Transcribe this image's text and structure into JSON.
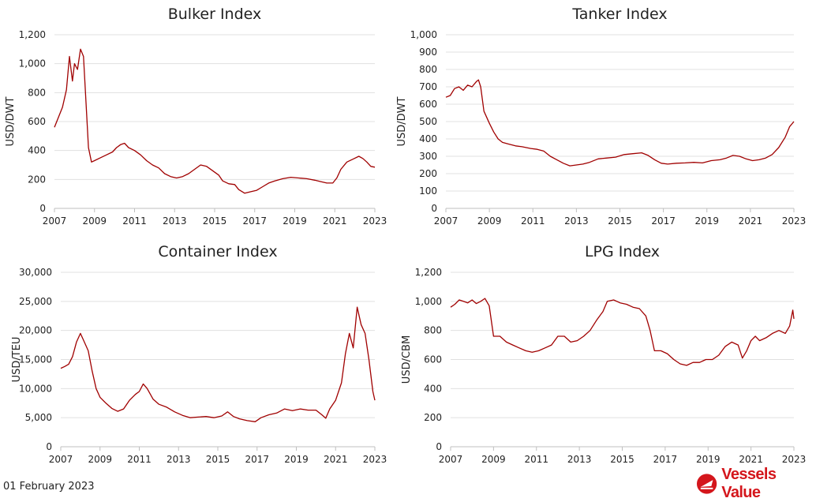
{
  "colors": {
    "line": "#a00000",
    "grid": "#e0e0e0",
    "text": "#222222",
    "brand": "#d4161c"
  },
  "chart_data": [
    {
      "type": "line",
      "title": "Bulker Index",
      "ylabel": "USD/DWT",
      "xlabel": "",
      "x_ticks": [
        "2007",
        "2009",
        "2011",
        "2013",
        "2015",
        "2017",
        "2019",
        "2021",
        "2023"
      ],
      "y_ticks": [
        "0",
        "200",
        "400",
        "600",
        "800",
        "1,000",
        "1,200"
      ],
      "xlim": [
        2007,
        2023
      ],
      "ylim": [
        0,
        1200
      ],
      "grid": true,
      "series": [
        {
          "values": [
            [
              2007.0,
              560
            ],
            [
              2007.2,
              630
            ],
            [
              2007.4,
              700
            ],
            [
              2007.6,
              820
            ],
            [
              2007.75,
              1050
            ],
            [
              2007.9,
              880
            ],
            [
              2008.0,
              1000
            ],
            [
              2008.15,
              960
            ],
            [
              2008.3,
              1100
            ],
            [
              2008.45,
              1050
            ],
            [
              2008.55,
              800
            ],
            [
              2008.7,
              420
            ],
            [
              2008.85,
              320
            ],
            [
              2009.0,
              330
            ],
            [
              2009.3,
              350
            ],
            [
              2009.6,
              370
            ],
            [
              2009.9,
              390
            ],
            [
              2010.1,
              420
            ],
            [
              2010.3,
              440
            ],
            [
              2010.5,
              450
            ],
            [
              2010.7,
              420
            ],
            [
              2011.0,
              400
            ],
            [
              2011.3,
              370
            ],
            [
              2011.6,
              330
            ],
            [
              2011.9,
              300
            ],
            [
              2012.2,
              280
            ],
            [
              2012.5,
              240
            ],
            [
              2012.8,
              220
            ],
            [
              2013.1,
              210
            ],
            [
              2013.4,
              220
            ],
            [
              2013.7,
              240
            ],
            [
              2014.0,
              270
            ],
            [
              2014.3,
              300
            ],
            [
              2014.6,
              290
            ],
            [
              2014.9,
              260
            ],
            [
              2015.2,
              230
            ],
            [
              2015.4,
              190
            ],
            [
              2015.7,
              170
            ],
            [
              2016.0,
              165
            ],
            [
              2016.2,
              130
            ],
            [
              2016.5,
              105
            ],
            [
              2016.8,
              115
            ],
            [
              2017.1,
              125
            ],
            [
              2017.4,
              150
            ],
            [
              2017.7,
              175
            ],
            [
              2018.0,
              190
            ],
            [
              2018.4,
              205
            ],
            [
              2018.8,
              215
            ],
            [
              2019.2,
              210
            ],
            [
              2019.6,
              205
            ],
            [
              2020.0,
              195
            ],
            [
              2020.3,
              185
            ],
            [
              2020.6,
              175
            ],
            [
              2020.9,
              175
            ],
            [
              2021.1,
              210
            ],
            [
              2021.3,
              270
            ],
            [
              2021.6,
              320
            ],
            [
              2021.9,
              340
            ],
            [
              2022.2,
              360
            ],
            [
              2022.4,
              345
            ],
            [
              2022.6,
              320
            ],
            [
              2022.8,
              290
            ],
            [
              2023.0,
              285
            ]
          ]
        }
      ]
    },
    {
      "type": "line",
      "title": "Tanker Index",
      "ylabel": "USD/DWT",
      "xlabel": "",
      "x_ticks": [
        "2007",
        "2009",
        "2011",
        "2013",
        "2015",
        "2017",
        "2019",
        "2021",
        "2023"
      ],
      "y_ticks": [
        "0",
        "100",
        "200",
        "300",
        "400",
        "500",
        "600",
        "700",
        "800",
        "900",
        "1,000"
      ],
      "xlim": [
        2007,
        2023
      ],
      "ylim": [
        0,
        1000
      ],
      "grid": true,
      "series": [
        {
          "values": [
            [
              2007.0,
              640
            ],
            [
              2007.2,
              650
            ],
            [
              2007.4,
              690
            ],
            [
              2007.6,
              700
            ],
            [
              2007.8,
              680
            ],
            [
              2008.0,
              710
            ],
            [
              2008.2,
              700
            ],
            [
              2008.4,
              730
            ],
            [
              2008.5,
              740
            ],
            [
              2008.6,
              700
            ],
            [
              2008.75,
              560
            ],
            [
              2009.0,
              490
            ],
            [
              2009.2,
              440
            ],
            [
              2009.4,
              400
            ],
            [
              2009.6,
              380
            ],
            [
              2009.9,
              370
            ],
            [
              2010.2,
              360
            ],
            [
              2010.5,
              355
            ],
            [
              2010.9,
              345
            ],
            [
              2011.2,
              340
            ],
            [
              2011.5,
              330
            ],
            [
              2011.8,
              300
            ],
            [
              2012.1,
              280
            ],
            [
              2012.4,
              260
            ],
            [
              2012.7,
              245
            ],
            [
              2013.0,
              250
            ],
            [
              2013.3,
              255
            ],
            [
              2013.6,
              265
            ],
            [
              2014.0,
              285
            ],
            [
              2014.4,
              290
            ],
            [
              2014.8,
              295
            ],
            [
              2015.2,
              310
            ],
            [
              2015.6,
              315
            ],
            [
              2016.0,
              320
            ],
            [
              2016.3,
              305
            ],
            [
              2016.6,
              280
            ],
            [
              2016.9,
              260
            ],
            [
              2017.2,
              255
            ],
            [
              2017.6,
              260
            ],
            [
              2018.0,
              262
            ],
            [
              2018.4,
              265
            ],
            [
              2018.8,
              262
            ],
            [
              2019.2,
              275
            ],
            [
              2019.6,
              280
            ],
            [
              2019.9,
              290
            ],
            [
              2020.2,
              305
            ],
            [
              2020.5,
              300
            ],
            [
              2020.8,
              285
            ],
            [
              2021.1,
              275
            ],
            [
              2021.4,
              280
            ],
            [
              2021.7,
              290
            ],
            [
              2022.0,
              310
            ],
            [
              2022.3,
              350
            ],
            [
              2022.6,
              410
            ],
            [
              2022.8,
              470
            ],
            [
              2023.0,
              500
            ]
          ]
        }
      ]
    },
    {
      "type": "line",
      "title": "Container Index",
      "ylabel": "USD/TEU",
      "xlabel": "",
      "x_ticks": [
        "2007",
        "2009",
        "2011",
        "2013",
        "2015",
        "2017",
        "2019",
        "2021",
        "2023"
      ],
      "y_ticks": [
        "0",
        "5,000",
        "10,000",
        "15,000",
        "20,000",
        "25,000",
        "30,000"
      ],
      "xlim": [
        2007,
        2023
      ],
      "ylim": [
        0,
        30000
      ],
      "grid": true,
      "series": [
        {
          "values": [
            [
              2007.0,
              13500
            ],
            [
              2007.2,
              13800
            ],
            [
              2007.4,
              14200
            ],
            [
              2007.6,
              15500
            ],
            [
              2007.8,
              18000
            ],
            [
              2008.0,
              19500
            ],
            [
              2008.2,
              18000
            ],
            [
              2008.4,
              16500
            ],
            [
              2008.6,
              13000
            ],
            [
              2008.8,
              10000
            ],
            [
              2009.0,
              8500
            ],
            [
              2009.3,
              7500
            ],
            [
              2009.6,
              6600
            ],
            [
              2009.9,
              6100
            ],
            [
              2010.2,
              6500
            ],
            [
              2010.5,
              8000
            ],
            [
              2010.8,
              9000
            ],
            [
              2011.0,
              9500
            ],
            [
              2011.2,
              10800
            ],
            [
              2011.4,
              10000
            ],
            [
              2011.7,
              8200
            ],
            [
              2012.0,
              7300
            ],
            [
              2012.4,
              6800
            ],
            [
              2012.8,
              6000
            ],
            [
              2013.2,
              5400
            ],
            [
              2013.6,
              5000
            ],
            [
              2014.0,
              5100
            ],
            [
              2014.4,
              5200
            ],
            [
              2014.8,
              5000
            ],
            [
              2015.2,
              5300
            ],
            [
              2015.5,
              6000
            ],
            [
              2015.8,
              5200
            ],
            [
              2016.1,
              4800
            ],
            [
              2016.5,
              4500
            ],
            [
              2016.9,
              4300
            ],
            [
              2017.2,
              5000
            ],
            [
              2017.6,
              5500
            ],
            [
              2018.0,
              5800
            ],
            [
              2018.4,
              6500
            ],
            [
              2018.8,
              6200
            ],
            [
              2019.2,
              6500
            ],
            [
              2019.6,
              6300
            ],
            [
              2020.0,
              6300
            ],
            [
              2020.3,
              5500
            ],
            [
              2020.5,
              4900
            ],
            [
              2020.7,
              6500
            ],
            [
              2021.0,
              8000
            ],
            [
              2021.3,
              11000
            ],
            [
              2021.5,
              16000
            ],
            [
              2021.7,
              19500
            ],
            [
              2021.9,
              17000
            ],
            [
              2022.1,
              24000
            ],
            [
              2022.3,
              21000
            ],
            [
              2022.5,
              19500
            ],
            [
              2022.7,
              15000
            ],
            [
              2022.9,
              9500
            ],
            [
              2023.0,
              8000
            ]
          ]
        }
      ]
    },
    {
      "type": "line",
      "title": "LPG Index",
      "ylabel": "USD/CBM",
      "xlabel": "",
      "x_ticks": [
        "2007",
        "2009",
        "2011",
        "2013",
        "2015",
        "2017",
        "2019",
        "2021",
        "2023"
      ],
      "y_ticks": [
        "0",
        "200",
        "400",
        "600",
        "800",
        "1,000",
        "1,200"
      ],
      "xlim": [
        2007,
        2023
      ],
      "ylim": [
        0,
        1200
      ],
      "grid": true,
      "series": [
        {
          "values": [
            [
              2007.0,
              960
            ],
            [
              2007.2,
              980
            ],
            [
              2007.4,
              1010
            ],
            [
              2007.6,
              1000
            ],
            [
              2007.8,
              990
            ],
            [
              2008.0,
              1010
            ],
            [
              2008.2,
              985
            ],
            [
              2008.4,
              1000
            ],
            [
              2008.6,
              1020
            ],
            [
              2008.8,
              970
            ],
            [
              2009.0,
              760
            ],
            [
              2009.3,
              760
            ],
            [
              2009.6,
              720
            ],
            [
              2009.9,
              700
            ],
            [
              2010.2,
              680
            ],
            [
              2010.5,
              660
            ],
            [
              2010.8,
              650
            ],
            [
              2011.1,
              660
            ],
            [
              2011.4,
              680
            ],
            [
              2011.7,
              700
            ],
            [
              2012.0,
              760
            ],
            [
              2012.3,
              760
            ],
            [
              2012.6,
              720
            ],
            [
              2012.9,
              730
            ],
            [
              2013.2,
              760
            ],
            [
              2013.5,
              800
            ],
            [
              2013.8,
              870
            ],
            [
              2014.1,
              930
            ],
            [
              2014.3,
              1000
            ],
            [
              2014.6,
              1010
            ],
            [
              2014.9,
              990
            ],
            [
              2015.2,
              980
            ],
            [
              2015.5,
              960
            ],
            [
              2015.8,
              950
            ],
            [
              2016.1,
              900
            ],
            [
              2016.3,
              800
            ],
            [
              2016.5,
              660
            ],
            [
              2016.8,
              660
            ],
            [
              2017.1,
              640
            ],
            [
              2017.4,
              600
            ],
            [
              2017.7,
              570
            ],
            [
              2018.0,
              560
            ],
            [
              2018.3,
              580
            ],
            [
              2018.6,
              580
            ],
            [
              2018.9,
              600
            ],
            [
              2019.2,
              600
            ],
            [
              2019.5,
              630
            ],
            [
              2019.8,
              690
            ],
            [
              2020.1,
              720
            ],
            [
              2020.4,
              700
            ],
            [
              2020.6,
              610
            ],
            [
              2020.8,
              660
            ],
            [
              2021.0,
              730
            ],
            [
              2021.2,
              760
            ],
            [
              2021.4,
              730
            ],
            [
              2021.7,
              750
            ],
            [
              2022.0,
              780
            ],
            [
              2022.3,
              800
            ],
            [
              2022.6,
              780
            ],
            [
              2022.8,
              830
            ],
            [
              2022.95,
              940
            ],
            [
              2023.0,
              880
            ]
          ]
        }
      ]
    }
  ],
  "footer": {
    "date": "01 February 2023",
    "brand": "Vessels Value"
  }
}
